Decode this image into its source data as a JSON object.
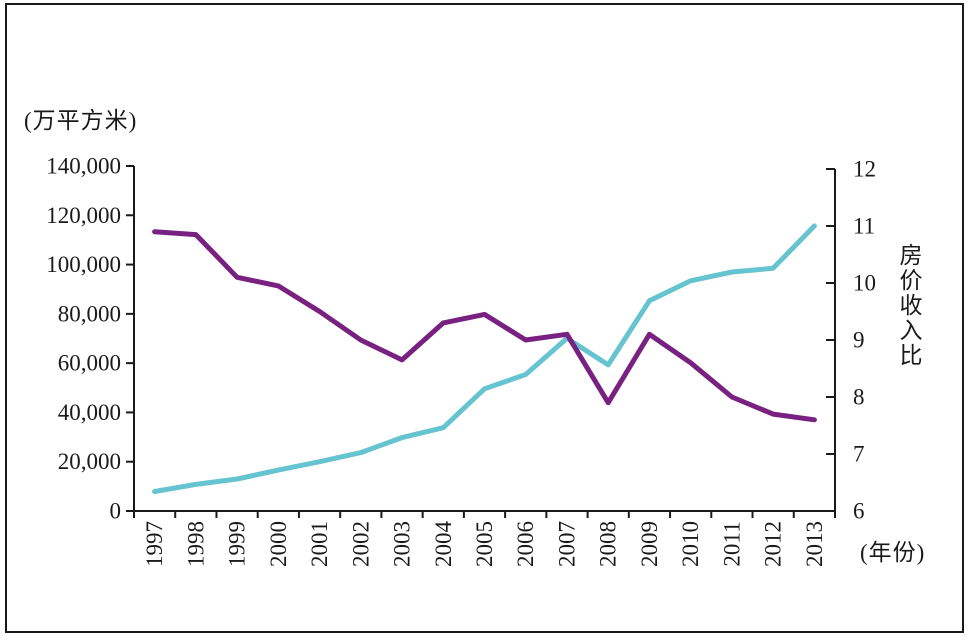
{
  "chart_data": {
    "type": "line",
    "title": "",
    "legend": "none",
    "grid": false,
    "x_categories": [
      "1997",
      "1998",
      "1999",
      "2000",
      "2001",
      "2002",
      "2003",
      "2004",
      "2005",
      "2006",
      "2007",
      "2008",
      "2009",
      "2010",
      "2011",
      "2012",
      "2013"
    ],
    "x_axis": {
      "title": "(年份)"
    },
    "left_axis": {
      "title": "(万平方米)",
      "tick_labels": [
        "140,000",
        "120,000",
        "100,000",
        "80,000",
        "60,000",
        "40,000",
        "20,000",
        "0"
      ],
      "tick_values": [
        140000,
        120000,
        100000,
        80000,
        60000,
        40000,
        20000,
        0
      ],
      "range": [
        0,
        140000
      ]
    },
    "right_axis": {
      "title": "房价收入比",
      "tick_labels": [
        "12",
        "11",
        "10",
        "9",
        "8",
        "7",
        "6"
      ],
      "tick_values": [
        12,
        11,
        10,
        9,
        8,
        7,
        6
      ],
      "range": [
        6,
        12
      ]
    },
    "series": [
      {
        "id": "floor-area-line",
        "axis": "left",
        "color": "#66C4D0",
        "values": [
          7900,
          10800,
          13000,
          16600,
          20000,
          23700,
          29800,
          33800,
          49600,
          55400,
          70100,
          59300,
          85300,
          93400,
          97000,
          98500,
          115700
        ]
      },
      {
        "id": "price-income-ratio-line",
        "axis": "right",
        "color": "#792181",
        "values": [
          10.9,
          10.85,
          10.1,
          9.95,
          9.5,
          9.0,
          8.65,
          9.3,
          9.45,
          9.0,
          9.1,
          7.9,
          9.1,
          8.6,
          8.0,
          7.7,
          7.6
        ]
      }
    ],
    "axis_color": "#1a1a1a"
  }
}
